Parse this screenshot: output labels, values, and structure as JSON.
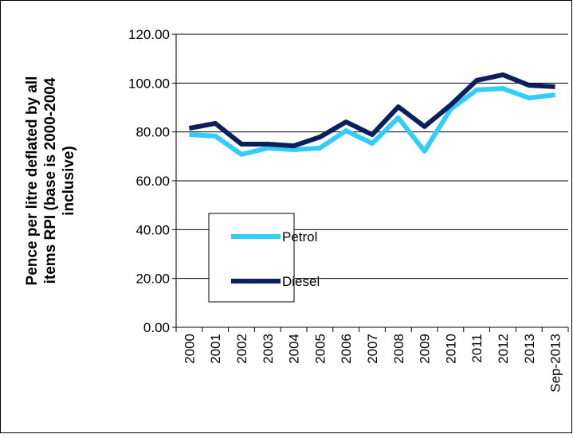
{
  "chart_data": {
    "type": "line",
    "ylabel": [
      "Pence per litre deflated by all",
      "items RPI (base is 2000-2004",
      "inclusive)"
    ],
    "categories": [
      "2000",
      "2001",
      "2002",
      "2003",
      "2004",
      "2005",
      "2006",
      "2007",
      "2008",
      "2009",
      "2010",
      "2011",
      "2012",
      "2013",
      "Sep-2013"
    ],
    "series": [
      {
        "name": "Petrol",
        "color": "#33ccff",
        "values": [
          78.9,
          78.3,
          70.8,
          73.4,
          72.7,
          73.4,
          80.5,
          75.3,
          85.8,
          72.1,
          89.3,
          97.2,
          97.8,
          93.9,
          95.2
        ]
      },
      {
        "name": "Diesel",
        "color": "#0a1f5c",
        "values": [
          81.5,
          83.5,
          75.0,
          75.0,
          74.3,
          77.9,
          84.1,
          78.9,
          90.3,
          82.2,
          91.0,
          101.1,
          103.4,
          99.1,
          98.5
        ]
      }
    ],
    "ylim": [
      0,
      120
    ],
    "yticks": [
      {
        "value": 0,
        "label": "0.00"
      },
      {
        "value": 20,
        "label": "20.00"
      },
      {
        "value": 40,
        "label": "40.00"
      },
      {
        "value": 60,
        "label": "60.00"
      },
      {
        "value": 80,
        "label": "80.00"
      },
      {
        "value": 100,
        "label": "100.00"
      },
      {
        "value": 120,
        "label": "120.00"
      }
    ],
    "grid": true
  }
}
